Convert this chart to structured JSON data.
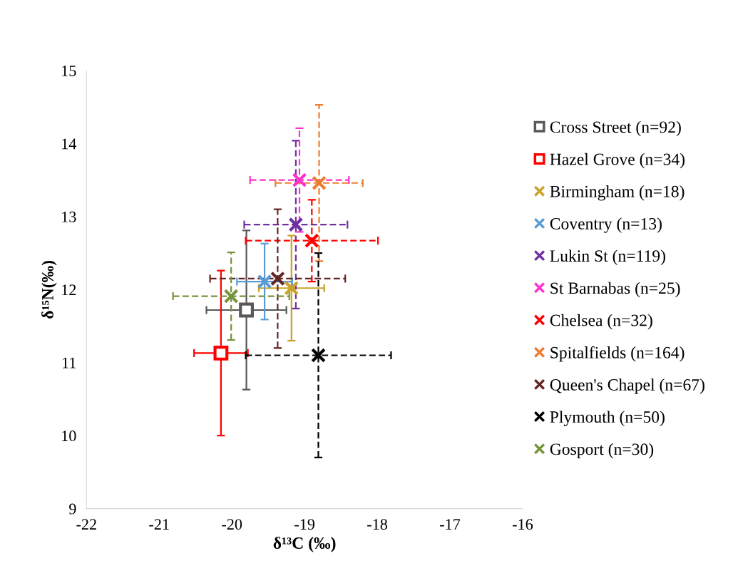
{
  "chart_data": {
    "type": "scatter",
    "xlabel": "δ¹³C (‰)",
    "ylabel": "δ¹⁵N(‰)",
    "xlim": [
      -22,
      -16
    ],
    "xticks": [
      -22,
      -21,
      -20,
      -19,
      -18,
      -17,
      -16
    ],
    "ylim": [
      9,
      15
    ],
    "yticks": [
      9,
      10,
      11,
      12,
      13,
      14,
      15
    ],
    "grid": false,
    "legend": "right",
    "series": [
      {
        "name": "Cross Street (n=92)",
        "color": "#595959",
        "marker": "square",
        "line_style": "solid",
        "x": [
          -19.8
        ],
        "values": [
          11.72
        ],
        "xerrors": [
          0.55
        ],
        "errors": [
          1.09
        ]
      },
      {
        "name": "Hazel Grove (n=34)",
        "color": "#ff0000",
        "marker": "square",
        "line_style": "solid",
        "x": [
          -20.15
        ],
        "values": [
          11.13
        ],
        "xerrors": [
          0.37
        ],
        "errors": [
          1.13
        ]
      },
      {
        "name": "Birmingham (n=18)",
        "color": "#c9a227",
        "marker": "cross",
        "line_style": "solid",
        "x": [
          -19.18
        ],
        "values": [
          12.02
        ],
        "xerrors": [
          0.45
        ],
        "errors": [
          0.72
        ]
      },
      {
        "name": "Coventry (n=13)",
        "color": "#5b9bd5",
        "marker": "cross",
        "line_style": "solid",
        "x": [
          -19.55
        ],
        "values": [
          12.11
        ],
        "xerrors": [
          0.38
        ],
        "errors": [
          0.52
        ]
      },
      {
        "name": "Lukin St (n=119)",
        "color": "#7030a0",
        "marker": "cross",
        "line_style": "dashed",
        "x": [
          -19.12
        ],
        "values": [
          12.89
        ],
        "xerrors": [
          0.71
        ],
        "errors": [
          1.15
        ]
      },
      {
        "name": "St Barnabas (n=25)",
        "color": "#ff33cc",
        "marker": "cross",
        "line_style": "dashed",
        "x": [
          -19.07
        ],
        "values": [
          13.5
        ],
        "xerrors": [
          0.68
        ],
        "errors": [
          0.71
        ]
      },
      {
        "name": "Chelsea (n=32)",
        "color": "#ff0000",
        "marker": "cross",
        "line_style": "dashed",
        "x": [
          -18.9
        ],
        "values": [
          12.67
        ],
        "xerrors": [
          0.91
        ],
        "errors": [
          0.56
        ]
      },
      {
        "name": "Spitalfields (n=164)",
        "color": "#ed7d31",
        "marker": "cross",
        "line_style": "dashed",
        "x": [
          -18.8
        ],
        "values": [
          13.46
        ],
        "xerrors": [
          0.6
        ],
        "errors": [
          1.07
        ]
      },
      {
        "name": "Queen's Chapel (n=67)",
        "color": "#632523",
        "marker": "cross",
        "line_style": "dashed",
        "x": [
          -19.37
        ],
        "values": [
          12.15
        ],
        "xerrors": [
          0.93
        ],
        "errors": [
          0.95
        ]
      },
      {
        "name": "Plymouth (n=50)",
        "color": "#000000",
        "marker": "cross",
        "line_style": "dashed",
        "x": [
          -18.81
        ],
        "values": [
          11.1
        ],
        "xerrors": [
          1.0
        ],
        "errors": [
          1.4
        ]
      },
      {
        "name": "Gosport (n=30)",
        "color": "#77933c",
        "marker": "cross",
        "line_style": "dashed",
        "x": [
          -20.01
        ],
        "values": [
          11.91
        ],
        "xerrors": [
          0.8
        ],
        "errors": [
          0.6
        ]
      }
    ]
  }
}
